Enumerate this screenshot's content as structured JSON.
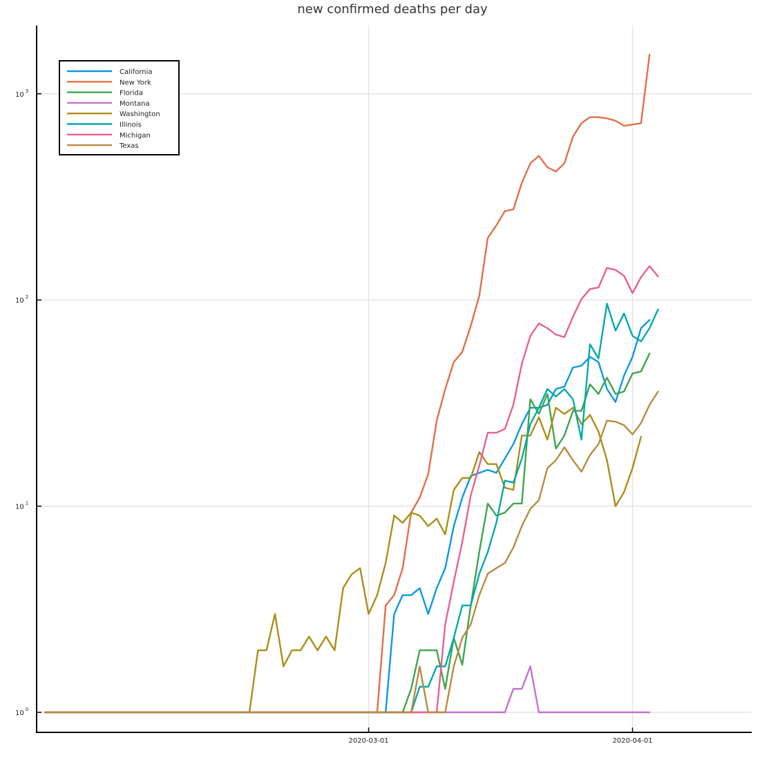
{
  "chart_data": {
    "type": "line",
    "title": "new confirmed deaths per day",
    "xlabel": "",
    "ylabel": "",
    "yscale": "log10",
    "ylim": [
      1,
      1700
    ],
    "xlim": [
      "2020-01-22",
      "2020-04-15"
    ],
    "x_ticks": [
      "2020-03-01",
      "2020-04-01"
    ],
    "y_ticks": [
      {
        "value": 1,
        "base": "10",
        "exp": "0"
      },
      {
        "value": 10,
        "base": "10",
        "exp": "1"
      },
      {
        "value": 100,
        "base": "10",
        "exp": "2"
      },
      {
        "value": 1000,
        "base": "10",
        "exp": "3"
      }
    ],
    "grid": true,
    "legend_position": "top-left",
    "x_start": "2020-01-23",
    "series": [
      {
        "name": "California",
        "color": "#0b98e0",
        "values": [
          1,
          1,
          1,
          1,
          1,
          1,
          1,
          1,
          1,
          1,
          1,
          1,
          1,
          1,
          1,
          1,
          1,
          1,
          1,
          1,
          1,
          1,
          1,
          1,
          1,
          1,
          1,
          1,
          1,
          1,
          1,
          1,
          1,
          1,
          1,
          1,
          1,
          1,
          1,
          1,
          1,
          3,
          3.7,
          3.7,
          4,
          3,
          4,
          5,
          8,
          11,
          14,
          14.5,
          15,
          14.5,
          17,
          20,
          25,
          30,
          30,
          31,
          37,
          38,
          47,
          48,
          53,
          50,
          37,
          32,
          43,
          53,
          73,
          80
        ]
      },
      {
        "name": "New York",
        "color": "#e26f46",
        "values": [
          1,
          1,
          1,
          1,
          1,
          1,
          1,
          1,
          1,
          1,
          1,
          1,
          1,
          1,
          1,
          1,
          1,
          1,
          1,
          1,
          1,
          1,
          1,
          1,
          1,
          1,
          1,
          1,
          1,
          1,
          1,
          1,
          1,
          1,
          1,
          1,
          1,
          1,
          1,
          1,
          3.3,
          3.7,
          5,
          9.3,
          11,
          14.3,
          26,
          37,
          50,
          56,
          75,
          105,
          200,
          230,
          270,
          275,
          370,
          460,
          500,
          440,
          420,
          460,
          620,
          720,
          770,
          770,
          760,
          740,
          700,
          710,
          720,
          1550
        ]
      },
      {
        "name": "Florida",
        "color": "#3da44d",
        "values": [
          1,
          1,
          1,
          1,
          1,
          1,
          1,
          1,
          1,
          1,
          1,
          1,
          1,
          1,
          1,
          1,
          1,
          1,
          1,
          1,
          1,
          1,
          1,
          1,
          1,
          1,
          1,
          1,
          1,
          1,
          1,
          1,
          1,
          1,
          1,
          1,
          1,
          1,
          1,
          1,
          1,
          1,
          1,
          1.3,
          2,
          2,
          2,
          1.3,
          2.3,
          1.7,
          3.3,
          6,
          10.3,
          9,
          9.3,
          10.3,
          10.3,
          33,
          28,
          35,
          19,
          22,
          29,
          29,
          39,
          35,
          42,
          35,
          36,
          44,
          45,
          55
        ]
      },
      {
        "name": "Montana",
        "color": "#c271d2",
        "values": [
          1,
          1,
          1,
          1,
          1,
          1,
          1,
          1,
          1,
          1,
          1,
          1,
          1,
          1,
          1,
          1,
          1,
          1,
          1,
          1,
          1,
          1,
          1,
          1,
          1,
          1,
          1,
          1,
          1,
          1,
          1,
          1,
          1,
          1,
          1,
          1,
          1,
          1,
          1,
          1,
          1,
          1,
          1,
          1,
          1,
          1,
          1,
          1,
          1,
          1,
          1,
          1,
          1,
          1,
          1,
          1.3,
          1.3,
          1.67,
          1,
          1,
          1,
          1,
          1,
          1,
          1,
          1,
          1,
          1,
          1,
          1,
          1,
          1
        ]
      },
      {
        "name": "Washington",
        "color": "#ac8d18",
        "values": [
          1,
          1,
          1,
          1,
          1,
          1,
          1,
          1,
          1,
          1,
          1,
          1,
          1,
          1,
          1,
          1,
          1,
          1,
          1,
          1,
          1,
          1,
          1,
          1,
          1,
          2,
          2,
          3,
          1.67,
          2,
          2,
          2.33,
          2,
          2.33,
          2,
          4,
          4.67,
          5,
          3,
          3.7,
          5.3,
          9,
          8.3,
          9.3,
          9,
          8,
          8.7,
          7.3,
          12,
          13.7,
          13.7,
          18.3,
          16,
          16,
          12.3,
          12,
          22,
          22,
          27,
          21,
          30,
          28,
          30,
          25,
          27.7,
          23,
          16.7,
          10,
          11.7,
          15.3,
          21.7
        ]
      },
      {
        "name": "Illinois",
        "color": "#00a9ad",
        "values": [
          1,
          1,
          1,
          1,
          1,
          1,
          1,
          1,
          1,
          1,
          1,
          1,
          1,
          1,
          1,
          1,
          1,
          1,
          1,
          1,
          1,
          1,
          1,
          1,
          1,
          1,
          1,
          1,
          1,
          1,
          1,
          1,
          1,
          1,
          1,
          1,
          1,
          1,
          1,
          1,
          1,
          1,
          1,
          1,
          1.33,
          1.33,
          1.67,
          1.67,
          2.3,
          3.3,
          3.3,
          4.7,
          6,
          8.3,
          13.3,
          13,
          17,
          25,
          30,
          37,
          34,
          37,
          33,
          21,
          61,
          52,
          96,
          71,
          86,
          67,
          63,
          73,
          90
        ]
      },
      {
        "name": "Michigan",
        "color": "#ea5f94",
        "values": [
          1,
          1,
          1,
          1,
          1,
          1,
          1,
          1,
          1,
          1,
          1,
          1,
          1,
          1,
          1,
          1,
          1,
          1,
          1,
          1,
          1,
          1,
          1,
          1,
          1,
          1,
          1,
          1,
          1,
          1,
          1,
          1,
          1,
          1,
          1,
          1,
          1,
          1,
          1,
          1,
          1,
          1,
          1,
          1,
          1,
          1,
          1,
          2.67,
          4.3,
          6.7,
          11.3,
          15.7,
          22.7,
          22.7,
          23.7,
          31,
          49,
          67,
          77,
          73,
          68,
          66,
          83,
          101,
          113,
          115,
          143,
          140,
          131,
          108,
          129,
          146,
          130
        ]
      },
      {
        "name": "Texas",
        "color": "#b88b3e",
        "values": [
          1,
          1,
          1,
          1,
          1,
          1,
          1,
          1,
          1,
          1,
          1,
          1,
          1,
          1,
          1,
          1,
          1,
          1,
          1,
          1,
          1,
          1,
          1,
          1,
          1,
          1,
          1,
          1,
          1,
          1,
          1,
          1,
          1,
          1,
          1,
          1,
          1,
          1,
          1,
          1,
          1,
          1,
          1,
          1,
          1.67,
          1,
          1,
          1,
          1.67,
          2.3,
          2.67,
          3.7,
          4.7,
          5,
          5.3,
          6.3,
          8,
          9.7,
          10.7,
          15.3,
          16.7,
          19.3,
          16.7,
          14.7,
          17.7,
          20,
          26,
          25.7,
          24.7,
          22.3,
          25.3,
          31,
          36
        ]
      }
    ]
  }
}
